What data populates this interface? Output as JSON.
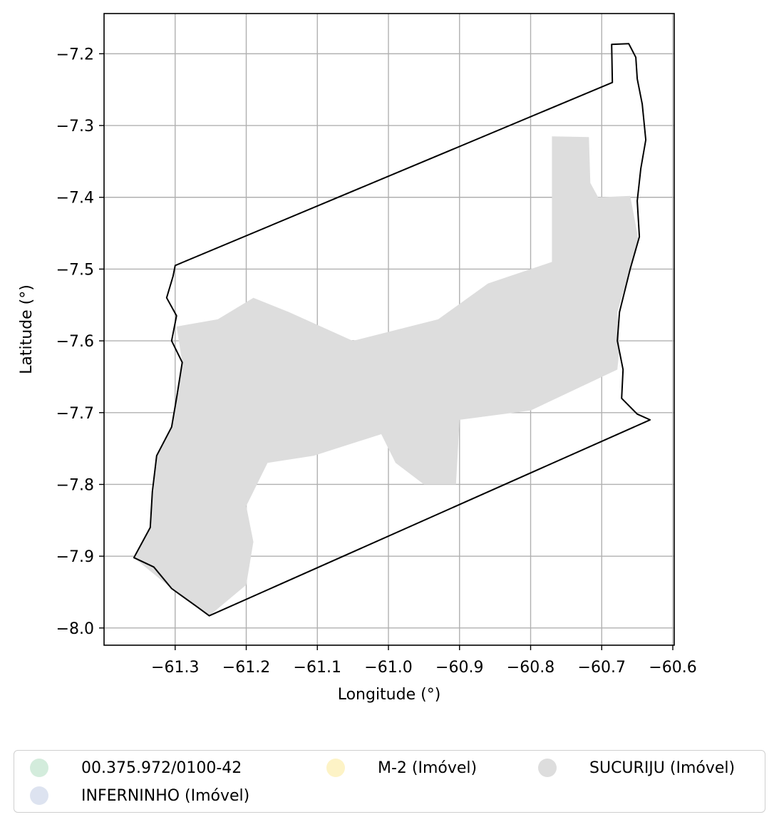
{
  "chart_data": {
    "type": "map",
    "xlabel": "Longitude (°)",
    "ylabel": "Latitude (°)",
    "xlim": [
      -61.4,
      -60.598
    ],
    "ylim": [
      -8.024,
      -7.144
    ],
    "xticks": [
      -61.3,
      -61.2,
      -61.1,
      -61.0,
      -60.9,
      -60.8,
      -60.7,
      -60.6
    ],
    "xtick_labels": [
      "−61.3",
      "−61.2",
      "−61.1",
      "−61.0",
      "−60.9",
      "−60.8",
      "−60.7",
      "−60.6"
    ],
    "yticks": [
      -7.2,
      -7.3,
      -7.4,
      -7.5,
      -7.6,
      -7.7,
      -7.8,
      -7.9,
      -8.0
    ],
    "ytick_labels": [
      "−7.2",
      "−7.3",
      "−7.4",
      "−7.5",
      "−7.6",
      "−7.7",
      "−7.8",
      "−7.9",
      "−8.0"
    ],
    "grid": true,
    "boundary": [
      [
        -61.3,
        -7.495
      ],
      [
        -60.685,
        -7.24
      ],
      [
        -60.686,
        -7.187
      ],
      [
        -60.662,
        -7.186
      ],
      [
        -60.652,
        -7.205
      ],
      [
        -60.65,
        -7.235
      ],
      [
        -60.643,
        -7.27
      ],
      [
        -60.638,
        -7.32
      ],
      [
        -60.645,
        -7.36
      ],
      [
        -60.65,
        -7.405
      ],
      [
        -60.647,
        -7.455
      ],
      [
        -60.66,
        -7.5
      ],
      [
        -60.675,
        -7.56
      ],
      [
        -60.678,
        -7.6
      ],
      [
        -60.67,
        -7.64
      ],
      [
        -60.672,
        -7.68
      ],
      [
        -60.65,
        -7.702
      ],
      [
        -60.632,
        -7.71
      ],
      [
        -61.252,
        -7.983
      ],
      [
        -61.27,
        -7.97
      ],
      [
        -61.305,
        -7.945
      ],
      [
        -61.33,
        -7.915
      ],
      [
        -61.358,
        -7.902
      ],
      [
        -61.335,
        -7.86
      ],
      [
        -61.332,
        -7.81
      ],
      [
        -61.326,
        -7.76
      ],
      [
        -61.305,
        -7.72
      ],
      [
        -61.298,
        -7.68
      ],
      [
        -61.29,
        -7.63
      ],
      [
        -61.305,
        -7.6
      ],
      [
        -61.298,
        -7.565
      ],
      [
        -61.312,
        -7.54
      ],
      [
        -61.303,
        -7.51
      ],
      [
        -61.3,
        -7.495
      ]
    ],
    "property_area": [
      [
        -60.77,
        -7.315
      ],
      [
        -60.718,
        -7.316
      ],
      [
        -60.716,
        -7.38
      ],
      [
        -60.705,
        -7.4
      ],
      [
        -60.66,
        -7.398
      ],
      [
        -60.648,
        -7.46
      ],
      [
        -60.66,
        -7.5
      ],
      [
        -60.678,
        -7.56
      ],
      [
        -60.675,
        -7.61
      ],
      [
        -60.678,
        -7.64
      ],
      [
        -60.8,
        -7.697
      ],
      [
        -60.9,
        -7.71
      ],
      [
        -60.905,
        -7.8
      ],
      [
        -60.95,
        -7.8
      ],
      [
        -60.99,
        -7.77
      ],
      [
        -61.01,
        -7.73
      ],
      [
        -61.105,
        -7.76
      ],
      [
        -61.17,
        -7.77
      ],
      [
        -61.2,
        -7.83
      ],
      [
        -61.19,
        -7.88
      ],
      [
        -61.2,
        -7.94
      ],
      [
        -61.252,
        -7.983
      ],
      [
        -61.305,
        -7.945
      ],
      [
        -61.358,
        -7.902
      ],
      [
        -61.335,
        -7.86
      ],
      [
        -61.326,
        -7.76
      ],
      [
        -61.305,
        -7.72
      ],
      [
        -61.29,
        -7.63
      ],
      [
        -61.298,
        -7.58
      ],
      [
        -61.24,
        -7.57
      ],
      [
        -61.19,
        -7.54
      ],
      [
        -61.14,
        -7.56
      ],
      [
        -61.05,
        -7.6
      ],
      [
        -60.93,
        -7.57
      ],
      [
        -60.86,
        -7.52
      ],
      [
        -60.77,
        -7.49
      ]
    ],
    "legend": {
      "placement": "bottom-center",
      "entries": [
        {
          "label": "00.375.972/0100-42",
          "color": "#d3ecdc"
        },
        {
          "label": "M-2 (Imóvel)",
          "color": "#fdf3c6"
        },
        {
          "label": "SUCURIJU (Imóvel)",
          "color": "#dddddd"
        },
        {
          "label": "INFERNINHO (Imóvel)",
          "color": "#dde3f0"
        }
      ]
    },
    "colors": {
      "boundary": "#000000",
      "property_fill": "#dddddd",
      "grid": "#b0b0b0"
    }
  }
}
